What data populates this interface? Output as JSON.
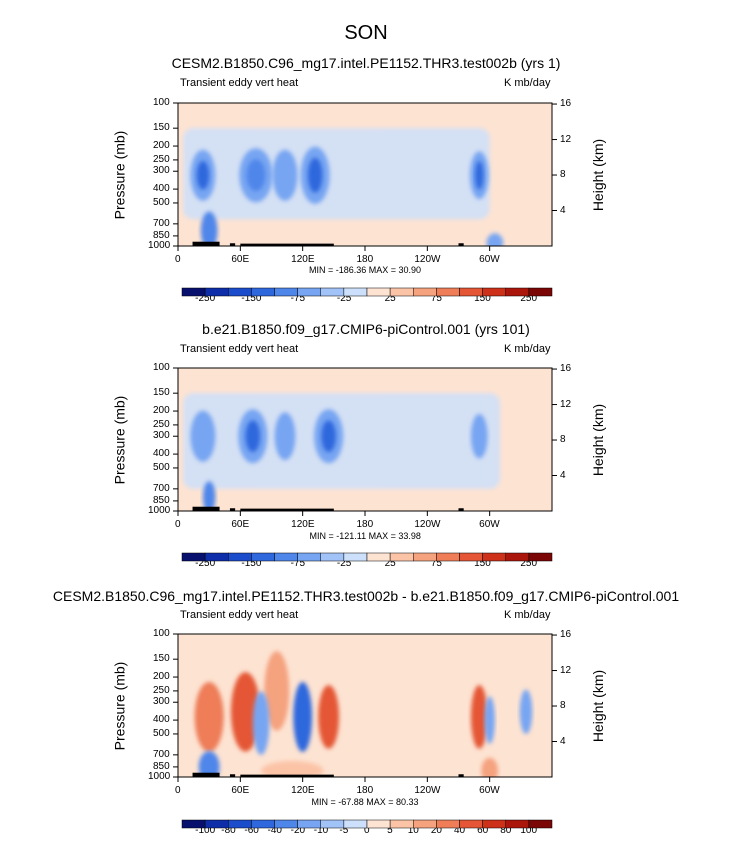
{
  "figure": {
    "title": "SON",
    "colors": {
      "ocean_bg": "#fde3d2",
      "land": "#000000",
      "frame": "#000000"
    }
  },
  "chart_data": [
    {
      "type": "heatmap",
      "panel_title": "CESM2.B1850.C96_mg17.intel.PE1152.THR3.test002b (yrs 1)",
      "left_label": "Transient eddy vert heat",
      "units_label": "K mb/day",
      "xlabel": "",
      "ylabel": "Pressure (mb)",
      "ylabel_right": "Height (km)",
      "x_ticks": [
        "0",
        "60E",
        "120E",
        "180",
        "120W",
        "60W"
      ],
      "y_ticks": [
        "100",
        "150",
        "200",
        "250",
        "300",
        "400",
        "500",
        "700",
        "850",
        "1000"
      ],
      "y_right_ticks": [
        "16",
        "12",
        "8",
        "4"
      ],
      "xlim": [
        0,
        360
      ],
      "ylim": [
        1000,
        100
      ],
      "stats": {
        "min": "-186.36",
        "max": "30.90",
        "text": "MIN = -186.36   MAX = 30.90"
      },
      "colorbar_labels": [
        "-250",
        "-150",
        "-75",
        "-25",
        "25",
        "75",
        "150",
        "250"
      ],
      "colorbar_colors": [
        "#08106e",
        "#0d2ea8",
        "#1b4ccb",
        "#2f67dd",
        "#4f86ea",
        "#77a5f2",
        "#a2c3f7",
        "#cde0fb",
        "#fde3d2",
        "#fbc4a7",
        "#f5a27f",
        "#ee7d58",
        "#e45635",
        "#cd3119",
        "#aa160c",
        "#7a0606"
      ],
      "blobs": [
        {
          "lon": 24,
          "p": 320,
          "w": 12,
          "h": 160,
          "v": -3
        },
        {
          "lon": 24,
          "p": 320,
          "w": 6,
          "h": 90,
          "v": -5
        },
        {
          "lon": 75,
          "p": 320,
          "w": 16,
          "h": 170,
          "v": -3
        },
        {
          "lon": 75,
          "p": 320,
          "w": 9,
          "h": 100,
          "v": -4
        },
        {
          "lon": 103,
          "p": 320,
          "w": 12,
          "h": 160,
          "v": -3
        },
        {
          "lon": 132,
          "p": 320,
          "w": 14,
          "h": 180,
          "v": -3
        },
        {
          "lon": 132,
          "p": 320,
          "w": 7,
          "h": 110,
          "v": -5
        },
        {
          "lon": 290,
          "p": 320,
          "w": 9,
          "h": 150,
          "v": -3
        },
        {
          "lon": 290,
          "p": 320,
          "w": 4,
          "h": 90,
          "v": -5
        },
        {
          "lon": 30,
          "p": 780,
          "w": 8,
          "h": 120,
          "v": -4
        },
        {
          "lon": 305,
          "p": 950,
          "w": 8,
          "h": 60,
          "v": -3
        }
      ],
      "cool_band": {
        "lon_from": 5,
        "lon_to": 300,
        "p_from": 150,
        "p_to": 650
      }
    },
    {
      "type": "heatmap",
      "panel_title": "b.e21.B1850.f09_g17.CMIP6-piControl.001 (yrs 101)",
      "left_label": "Transient eddy vert heat",
      "units_label": "K mb/day",
      "xlabel": "",
      "ylabel": "Pressure (mb)",
      "ylabel_right": "Height (km)",
      "x_ticks": [
        "0",
        "60E",
        "120E",
        "180",
        "120W",
        "60W"
      ],
      "y_ticks": [
        "100",
        "150",
        "200",
        "250",
        "300",
        "400",
        "500",
        "700",
        "850",
        "1000"
      ],
      "y_right_ticks": [
        "16",
        "12",
        "8",
        "4"
      ],
      "xlim": [
        0,
        360
      ],
      "ylim": [
        1000,
        100
      ],
      "stats": {
        "min": "-121.11",
        "max": "33.98",
        "text": "MIN = -121.11   MAX = 33.98"
      },
      "colorbar_labels": [
        "-250",
        "-150",
        "-75",
        "-25",
        "25",
        "75",
        "150",
        "250"
      ],
      "colorbar_colors": [
        "#08106e",
        "#0d2ea8",
        "#1b4ccb",
        "#2f67dd",
        "#4f86ea",
        "#77a5f2",
        "#a2c3f7",
        "#cde0fb",
        "#fde3d2",
        "#fbc4a7",
        "#f5a27f",
        "#ee7d58",
        "#e45635",
        "#cd3119",
        "#aa160c",
        "#7a0606"
      ],
      "blobs": [
        {
          "lon": 24,
          "p": 300,
          "w": 12,
          "h": 160,
          "v": -3
        },
        {
          "lon": 72,
          "p": 300,
          "w": 14,
          "h": 170,
          "v": -3
        },
        {
          "lon": 72,
          "p": 300,
          "w": 7,
          "h": 100,
          "v": -5
        },
        {
          "lon": 103,
          "p": 300,
          "w": 10,
          "h": 150,
          "v": -3
        },
        {
          "lon": 145,
          "p": 300,
          "w": 14,
          "h": 170,
          "v": -3
        },
        {
          "lon": 145,
          "p": 300,
          "w": 7,
          "h": 100,
          "v": -5
        },
        {
          "lon": 290,
          "p": 300,
          "w": 8,
          "h": 140,
          "v": -3
        },
        {
          "lon": 30,
          "p": 800,
          "w": 6,
          "h": 100,
          "v": -4
        }
      ],
      "cool_band": {
        "lon_from": 5,
        "lon_to": 310,
        "p_from": 150,
        "p_to": 700
      }
    },
    {
      "type": "heatmap",
      "panel_title": "CESM2.B1850.C96_mg17.intel.PE1152.THR3.test002b - b.e21.B1850.f09_g17.CMIP6-piControl.001",
      "left_label": "Transient eddy vert heat",
      "units_label": "K mb/day",
      "xlabel": "",
      "ylabel": "Pressure (mb)",
      "ylabel_right": "Height (km)",
      "x_ticks": [
        "0",
        "60E",
        "120E",
        "180",
        "120W",
        "60W"
      ],
      "y_ticks": [
        "100",
        "150",
        "200",
        "250",
        "300",
        "400",
        "500",
        "700",
        "850",
        "1000"
      ],
      "y_right_ticks": [
        "16",
        "12",
        "8",
        "4"
      ],
      "xlim": [
        0,
        360
      ],
      "ylim": [
        1000,
        100
      ],
      "stats": {
        "min": "-67.88",
        "max": "80.33",
        "text": "MIN = -67.88   MAX = 80.33"
      },
      "colorbar_labels": [
        "-100",
        "-80",
        "-60",
        "-40",
        "-20",
        "-10",
        "-5",
        "0",
        "5",
        "10",
        "20",
        "40",
        "60",
        "80",
        "100"
      ],
      "colorbar_colors": [
        "#08106e",
        "#0d2ea8",
        "#1b4ccb",
        "#2f67dd",
        "#4f86ea",
        "#77a5f2",
        "#a2c3f7",
        "#cde0fb",
        "#fde3d2",
        "#fbc4a7",
        "#f5a27f",
        "#ee7d58",
        "#e45635",
        "#cd3119",
        "#aa160c",
        "#7a0606"
      ],
      "blobs": [
        {
          "lon": 30,
          "p": 380,
          "w": 14,
          "h": 220,
          "v": 4
        },
        {
          "lon": 65,
          "p": 350,
          "w": 14,
          "h": 250,
          "v": 5
        },
        {
          "lon": 95,
          "p": 250,
          "w": 12,
          "h": 250,
          "v": 3
        },
        {
          "lon": 120,
          "p": 380,
          "w": 9,
          "h": 220,
          "v": -5
        },
        {
          "lon": 145,
          "p": 380,
          "w": 10,
          "h": 200,
          "v": 5
        },
        {
          "lon": 80,
          "p": 420,
          "w": 8,
          "h": 200,
          "v": -3
        },
        {
          "lon": 290,
          "p": 380,
          "w": 8,
          "h": 200,
          "v": 5
        },
        {
          "lon": 300,
          "p": 400,
          "w": 5,
          "h": 150,
          "v": -3
        },
        {
          "lon": 335,
          "p": 350,
          "w": 6,
          "h": 140,
          "v": -3
        },
        {
          "lon": 190,
          "p": 400,
          "w": 10,
          "h": 160,
          "v": 1
        },
        {
          "lon": 30,
          "p": 850,
          "w": 10,
          "h": 100,
          "v": -4
        },
        {
          "lon": 110,
          "p": 900,
          "w": 30,
          "h": 60,
          "v": 2
        },
        {
          "lon": 300,
          "p": 900,
          "w": 8,
          "h": 80,
          "v": 3
        }
      ],
      "cool_band": null
    }
  ]
}
